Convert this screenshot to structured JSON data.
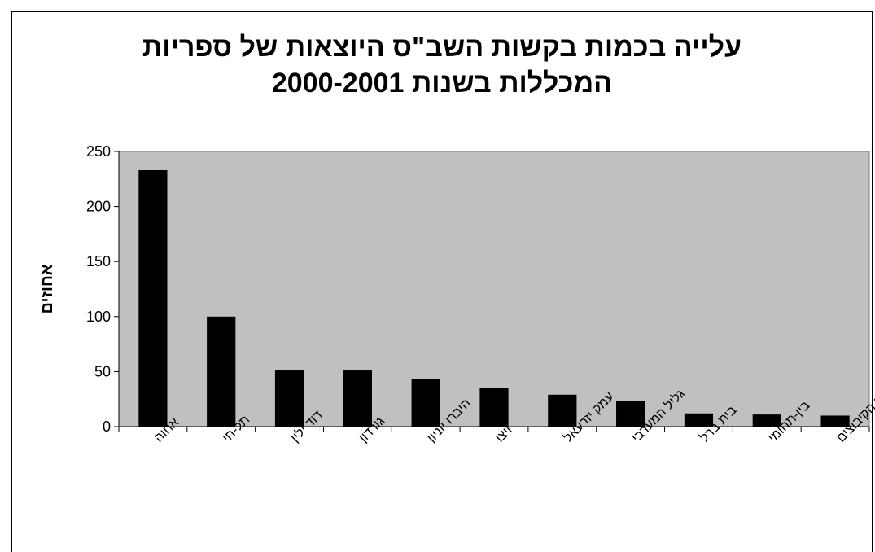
{
  "chart_data": {
    "type": "bar",
    "title": [
      "עלייה בכמות בקשות השב\"ס היוצאות של ספריות",
      "המכללות בשנות 2000-2001"
    ],
    "ylabel": "אחוזים",
    "xlabel": "",
    "ylim": [
      0,
      250
    ],
    "yticks": [
      0,
      50,
      100,
      150,
      200,
      250
    ],
    "categories": [
      "אחוה",
      "תל-חי",
      "דוד ילין",
      "גורדון",
      "היברו יוניון",
      "ויצו",
      "עמק יזרעאל",
      "גליל המערבי",
      "בית ברל",
      "בין-תחומי",
      "סמינר הקיבוצים"
    ],
    "values": [
      233,
      100,
      51,
      51,
      43,
      35,
      29,
      23,
      12,
      11,
      10
    ],
    "grid": false,
    "legend": "none",
    "colors": {
      "plot_bg": "#c0c0c0",
      "bar": "#000000",
      "axis": "#000000"
    }
  }
}
